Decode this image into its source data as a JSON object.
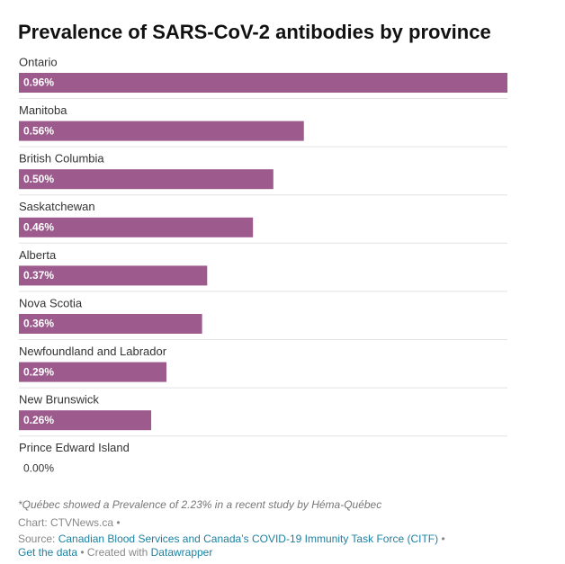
{
  "chart_data": {
    "type": "bar",
    "orientation": "horizontal",
    "title": "Prevalence of SARS-CoV-2 antibodies by province",
    "categories": [
      "Ontario",
      "Manitoba",
      "British Columbia",
      "Saskatchewan",
      "Alberta",
      "Nova Scotia",
      "Newfoundland and Labrador",
      "New Brunswick",
      "Prince Edward Island"
    ],
    "values": [
      0.96,
      0.56,
      0.5,
      0.46,
      0.37,
      0.36,
      0.29,
      0.26,
      0.0
    ],
    "value_labels": [
      "0.96%",
      "0.56%",
      "0.50%",
      "0.46%",
      "0.37%",
      "0.36%",
      "0.29%",
      "0.26%",
      "0.00%"
    ],
    "color": "#9c5a8d",
    "note": "*Québec showed a Prevalence of 2.23% in a recent study by Héma-Québec",
    "byline": "Chart: CTVNews.ca •",
    "source_label": "Source:",
    "source": "Canadian Blood Services and Canada’s COVID-19 Immunity Task Force (CITF)",
    "source_end": "•",
    "data_link": "Get the data",
    "created_with": "• Created with",
    "credit": "Datawrapper"
  }
}
